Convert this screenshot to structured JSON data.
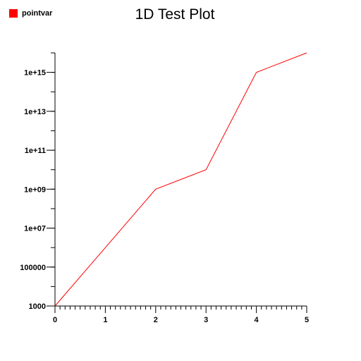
{
  "chart_data": {
    "type": "line",
    "title": "1D Test Plot",
    "xlabel": "",
    "ylabel": "",
    "yscale": "log",
    "xlim": [
      0,
      5
    ],
    "ylim": [
      1000,
      10000000000000000
    ],
    "grid": false,
    "legend_position": "top-left",
    "x_tick_labels": [
      "0",
      "1",
      "2",
      "3",
      "4",
      "5"
    ],
    "y_tick_labels": [
      "1000",
      "100000",
      "1e+07",
      "1e+09",
      "1e+11",
      "1e+13",
      "1e+15"
    ],
    "series": [
      {
        "name": "pointvar",
        "color": "#ff0000",
        "x": [
          0,
          1,
          2,
          3,
          4,
          5
        ],
        "y": [
          1000,
          1000000,
          1000000000,
          10000000000,
          1000000000000000,
          10000000000000000
        ]
      }
    ]
  },
  "colors": {
    "series": "#ff0000",
    "axis": "#000000",
    "background": "#ffffff"
  }
}
